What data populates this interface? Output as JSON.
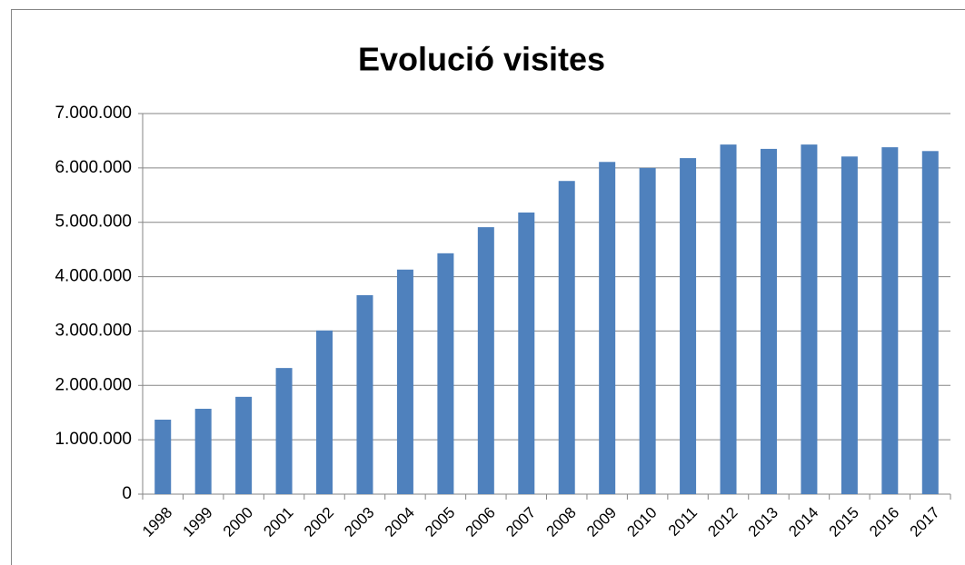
{
  "chart_data": {
    "type": "bar",
    "title": "Evolució visites",
    "categories": [
      "1998",
      "1999",
      "2000",
      "2001",
      "2002",
      "2003",
      "2004",
      "2005",
      "2006",
      "2007",
      "2008",
      "2009",
      "2010",
      "2011",
      "2012",
      "2013",
      "2014",
      "2015",
      "2016",
      "2017"
    ],
    "values": [
      1370000,
      1570000,
      1790000,
      2320000,
      3010000,
      3660000,
      4130000,
      4430000,
      4910000,
      5180000,
      5760000,
      6110000,
      6000000,
      6180000,
      6430000,
      6350000,
      6430000,
      6210000,
      6380000,
      6310000
    ],
    "color": "#4f81bd",
    "ylim": [
      0,
      7000000
    ],
    "yticks": [
      0,
      {
        "value": 1000000,
        "label": "1.000.000"
      },
      {
        "value": 2000000,
        "label": "2.000.000"
      },
      {
        "value": 3000000,
        "label": "3.000.000"
      },
      {
        "value": 4000000,
        "label": "4.000.000"
      },
      {
        "value": 5000000,
        "label": "5.000.000"
      },
      {
        "value": 6000000,
        "label": "6.000.000"
      },
      {
        "value": 7000000,
        "label": "7.000.000"
      }
    ],
    "grid": true
  }
}
